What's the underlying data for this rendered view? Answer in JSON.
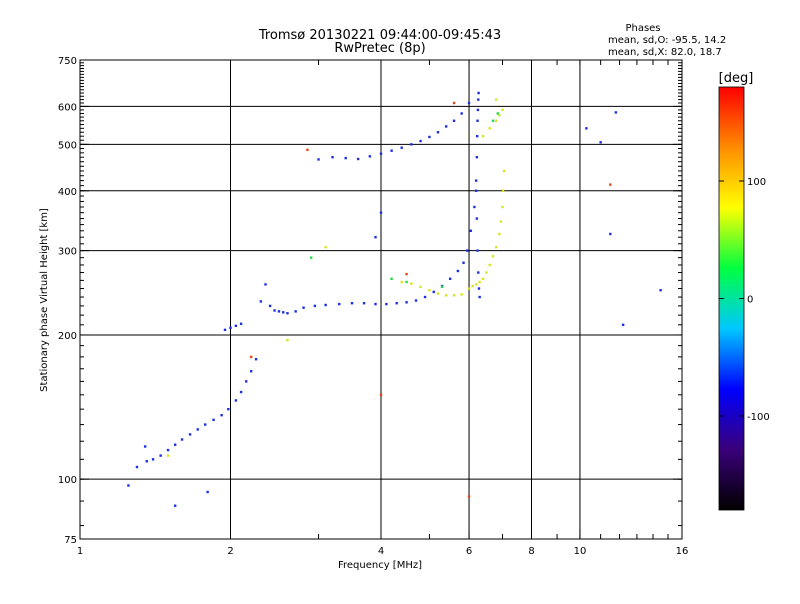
{
  "chart_data": {
    "type": "scatter",
    "title": "Tromsø 20130221 09:44:00-09:45:43",
    "subtitle": "RwPretec (8p)",
    "xlabel": "Frequency [MHz]",
    "ylabel": "Stationary phase Virtual Height [km]",
    "x_scale": "log",
    "y_scale": "log",
    "xlim": [
      1,
      16
    ],
    "ylim": [
      75,
      750
    ],
    "x_ticks": [
      1,
      2,
      4,
      6,
      8,
      10,
      16
    ],
    "y_ticks": [
      75,
      100,
      200,
      300,
      400,
      500,
      600,
      750
    ],
    "grid_x": [
      2,
      4,
      6,
      8,
      10
    ],
    "grid_y": [
      100,
      200,
      300,
      400,
      500,
      600
    ],
    "phase_stats": {
      "heading": "Phases",
      "line_o": "mean, sd,O: -95.5, 14.2",
      "line_x": "mean, sd,X:  82.0, 18.7"
    },
    "colorbar": {
      "label": "[deg]",
      "range": [
        -180,
        180
      ],
      "ticks": [
        100,
        0,
        -100
      ],
      "colors": [
        "#000000",
        "#3a007a",
        "#0000ff",
        "#00c8ff",
        "#00ff40",
        "#ffff00",
        "#ff8c00",
        "#ff0000"
      ]
    },
    "series": [
      {
        "phase": -100,
        "color": "#1c2fe6",
        "x": [
          1.3,
          1.36,
          1.4,
          1.45,
          1.5,
          1.55,
          1.6,
          1.66,
          1.72,
          1.78,
          1.85,
          1.92,
          1.98,
          2.05,
          2.1,
          2.15,
          2.2,
          2.25,
          2.3,
          2.35,
          2.4,
          2.45,
          2.5,
          2.55,
          2.6,
          2.7,
          2.8,
          2.95,
          3.1,
          3.3,
          3.5,
          3.7,
          3.9,
          4.1,
          4.3,
          4.5,
          4.7,
          4.9,
          5.1,
          5.3,
          5.5,
          5.7,
          5.85,
          5.95,
          6.05,
          6.15,
          6.2,
          6.22,
          6.23,
          6.24,
          6.25,
          6.26,
          6.27,
          3.0,
          3.2,
          3.4,
          3.6,
          3.8,
          4.0,
          4.2,
          4.4,
          4.6,
          4.8,
          5.0,
          5.2,
          5.4,
          5.6,
          5.8,
          6.0,
          6.2,
          6.22,
          6.24,
          6.26,
          6.28,
          6.3,
          1.95,
          2.0,
          2.05,
          2.1,
          1.25,
          1.35,
          1.55,
          1.8,
          10.3,
          11.0,
          11.8,
          14.5,
          11.5,
          12.2,
          4.0,
          3.9
        ],
        "y": [
          106,
          109,
          110,
          112,
          115,
          118,
          121,
          124,
          127,
          130,
          133,
          136,
          140,
          146,
          152,
          160,
          168,
          178,
          235,
          255,
          230,
          225,
          224,
          223,
          222,
          224,
          228,
          230,
          231,
          232,
          233,
          233,
          232,
          232,
          233,
          234,
          236,
          240,
          246,
          253,
          262,
          272,
          283,
          300,
          330,
          370,
          420,
          470,
          520,
          560,
          590,
          620,
          640,
          465,
          470,
          468,
          466,
          472,
          478,
          485,
          492,
          500,
          508,
          518,
          530,
          545,
          560,
          580,
          610,
          400,
          350,
          300,
          270,
          250,
          240,
          205,
          207,
          209,
          211,
          97,
          117,
          88,
          94,
          540,
          505,
          583,
          248,
          325,
          210,
          360,
          320
        ]
      },
      {
        "phase": 100,
        "color": "#d6e61e",
        "x": [
          6.0,
          6.1,
          6.2,
          6.3,
          6.4,
          6.5,
          6.6,
          6.7,
          6.8,
          6.9,
          6.95,
          7.0,
          7.02,
          7.05,
          4.4,
          4.6,
          4.8,
          5.0,
          5.2,
          5.4,
          5.6,
          5.8,
          6.4,
          6.6,
          6.8,
          6.9,
          7.0,
          2.6,
          3.1,
          1.5,
          6.8
        ],
        "y": [
          250,
          253,
          255,
          258,
          262,
          270,
          280,
          292,
          305,
          325,
          345,
          370,
          400,
          440,
          258,
          256,
          252,
          248,
          244,
          242,
          242,
          243,
          520,
          540,
          560,
          575,
          590,
          195,
          305,
          112,
          620
        ]
      },
      {
        "phase": 0,
        "color": "#27d64a",
        "x": [
          4.2,
          4.5,
          5.3,
          6.7,
          6.85,
          2.9
        ],
        "y": [
          262,
          258,
          252,
          560,
          580,
          290
        ]
      },
      {
        "phase": 150,
        "color": "#e04a1a",
        "x": [
          4.5,
          5.6,
          2.85,
          6.0,
          11.5,
          2.2,
          4.0
        ],
        "y": [
          268,
          610,
          487,
          92,
          412,
          180,
          150
        ]
      }
    ]
  }
}
